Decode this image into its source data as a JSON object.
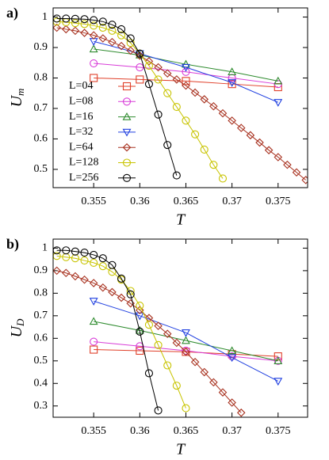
{
  "chart_data": [
    {
      "type": "line",
      "panel_label": "a)",
      "xlabel": "T",
      "ylabel": "U",
      "ylabel_sub": "m",
      "xlim": [
        0.3506,
        0.3782
      ],
      "ylim": [
        0.44,
        1.03
      ],
      "xticks": [
        0.355,
        0.36,
        0.365,
        0.37,
        0.375
      ],
      "yticks": [
        0.5,
        0.6,
        0.7,
        0.8,
        0.9,
        1
      ],
      "legend": "lower left",
      "series": [
        {
          "name": "L=04",
          "color": "#e0402a",
          "marker": "square",
          "x": [
            0.355,
            0.36,
            0.365,
            0.37,
            0.375
          ],
          "values": [
            0.8,
            0.795,
            0.79,
            0.78,
            0.77
          ]
        },
        {
          "name": "L=08",
          "color": "#d83cd8",
          "marker": "circle",
          "x": [
            0.355,
            0.36,
            0.365,
            0.37,
            0.375
          ],
          "values": [
            0.848,
            0.835,
            0.82,
            0.8,
            0.78
          ]
        },
        {
          "name": "L=16",
          "color": "#2e8b2e",
          "marker": "triangle",
          "x": [
            0.355,
            0.36,
            0.365,
            0.37,
            0.375
          ],
          "values": [
            0.895,
            0.875,
            0.845,
            0.82,
            0.79
          ]
        },
        {
          "name": "L=32",
          "color": "#2040e0",
          "marker": "triangle-down",
          "x": [
            0.355,
            0.36,
            0.365,
            0.37,
            0.375
          ],
          "values": [
            0.92,
            0.88,
            0.835,
            0.785,
            0.72
          ]
        },
        {
          "name": "L=64",
          "color": "#a83220",
          "marker": "diamond",
          "x": [
            0.351,
            0.352,
            0.353,
            0.354,
            0.355,
            0.356,
            0.357,
            0.358,
            0.359,
            0.36,
            0.361,
            0.362,
            0.363,
            0.364,
            0.365,
            0.366,
            0.367,
            0.368,
            0.369,
            0.37,
            0.371,
            0.372,
            0.373,
            0.374,
            0.375,
            0.376,
            0.377,
            0.378
          ],
          "values": [
            0.965,
            0.96,
            0.955,
            0.948,
            0.94,
            0.93,
            0.918,
            0.905,
            0.89,
            0.873,
            0.855,
            0.835,
            0.815,
            0.795,
            0.775,
            0.752,
            0.73,
            0.707,
            0.684,
            0.66,
            0.636,
            0.612,
            0.588,
            0.563,
            0.54,
            0.515,
            0.49,
            0.465
          ]
        },
        {
          "name": "L=128",
          "color": "#c8c400",
          "marker": "circle",
          "x": [
            0.351,
            0.352,
            0.353,
            0.354,
            0.355,
            0.356,
            0.357,
            0.358,
            0.359,
            0.36,
            0.361,
            0.362,
            0.363,
            0.364,
            0.365,
            0.366,
            0.367,
            0.368,
            0.369
          ],
          "values": [
            0.985,
            0.983,
            0.98,
            0.977,
            0.972,
            0.965,
            0.955,
            0.94,
            0.915,
            0.88,
            0.84,
            0.795,
            0.75,
            0.705,
            0.66,
            0.615,
            0.565,
            0.515,
            0.47
          ]
        },
        {
          "name": "L=256",
          "color": "#000000",
          "marker": "circle",
          "x": [
            0.351,
            0.352,
            0.353,
            0.354,
            0.355,
            0.356,
            0.357,
            0.358,
            0.359,
            0.36,
            0.361,
            0.362,
            0.363,
            0.364
          ],
          "values": [
            0.995,
            0.995,
            0.994,
            0.993,
            0.99,
            0.985,
            0.975,
            0.96,
            0.93,
            0.88,
            0.78,
            0.68,
            0.58,
            0.48
          ]
        }
      ]
    },
    {
      "type": "line",
      "panel_label": "b)",
      "xlabel": "T",
      "ylabel": "U",
      "ylabel_sub": "D",
      "xlim": [
        0.3506,
        0.3782
      ],
      "ylim": [
        0.25,
        1.04
      ],
      "xticks": [
        0.355,
        0.36,
        0.365,
        0.37,
        0.375
      ],
      "yticks": [
        0.3,
        0.4,
        0.5,
        0.6,
        0.7,
        0.8,
        0.9,
        1
      ],
      "series": [
        {
          "color": "#e0402a",
          "marker": "square",
          "x": [
            0.355,
            0.36,
            0.365,
            0.37,
            0.375
          ],
          "values": [
            0.55,
            0.545,
            0.54,
            0.53,
            0.52
          ]
        },
        {
          "color": "#d83cd8",
          "marker": "circle",
          "x": [
            0.355,
            0.36,
            0.365,
            0.37,
            0.375
          ],
          "values": [
            0.585,
            0.565,
            0.545,
            0.52,
            0.5
          ]
        },
        {
          "color": "#2e8b2e",
          "marker": "triangle",
          "x": [
            0.355,
            0.36,
            0.365,
            0.37,
            0.375
          ],
          "values": [
            0.675,
            0.635,
            0.59,
            0.545,
            0.5
          ]
        },
        {
          "color": "#2040e0",
          "marker": "triangle-down",
          "x": [
            0.355,
            0.36,
            0.365,
            0.37,
            0.375
          ],
          "values": [
            0.765,
            0.7,
            0.625,
            0.515,
            0.41
          ]
        },
        {
          "color": "#a83220",
          "marker": "diamond",
          "x": [
            0.351,
            0.352,
            0.353,
            0.354,
            0.355,
            0.356,
            0.357,
            0.358,
            0.359,
            0.36,
            0.361,
            0.362,
            0.363,
            0.364,
            0.365,
            0.366,
            0.367,
            0.368,
            0.369,
            0.37,
            0.371
          ],
          "values": [
            0.9,
            0.89,
            0.875,
            0.86,
            0.845,
            0.825,
            0.805,
            0.78,
            0.755,
            0.725,
            0.69,
            0.655,
            0.62,
            0.58,
            0.54,
            0.495,
            0.45,
            0.405,
            0.36,
            0.315,
            0.27
          ]
        },
        {
          "color": "#c8c400",
          "marker": "circle",
          "x": [
            0.351,
            0.352,
            0.353,
            0.354,
            0.355,
            0.356,
            0.357,
            0.358,
            0.359,
            0.36,
            0.361,
            0.362,
            0.363,
            0.364,
            0.365
          ],
          "values": [
            0.965,
            0.96,
            0.955,
            0.945,
            0.935,
            0.92,
            0.895,
            0.86,
            0.81,
            0.745,
            0.66,
            0.57,
            0.48,
            0.39,
            0.29
          ]
        },
        {
          "color": "#000000",
          "marker": "circle",
          "x": [
            0.351,
            0.352,
            0.353,
            0.354,
            0.355,
            0.356,
            0.357,
            0.358,
            0.359,
            0.36,
            0.361,
            0.362
          ],
          "values": [
            0.99,
            0.99,
            0.985,
            0.98,
            0.97,
            0.955,
            0.925,
            0.865,
            0.795,
            0.63,
            0.445,
            0.28
          ]
        }
      ]
    }
  ]
}
